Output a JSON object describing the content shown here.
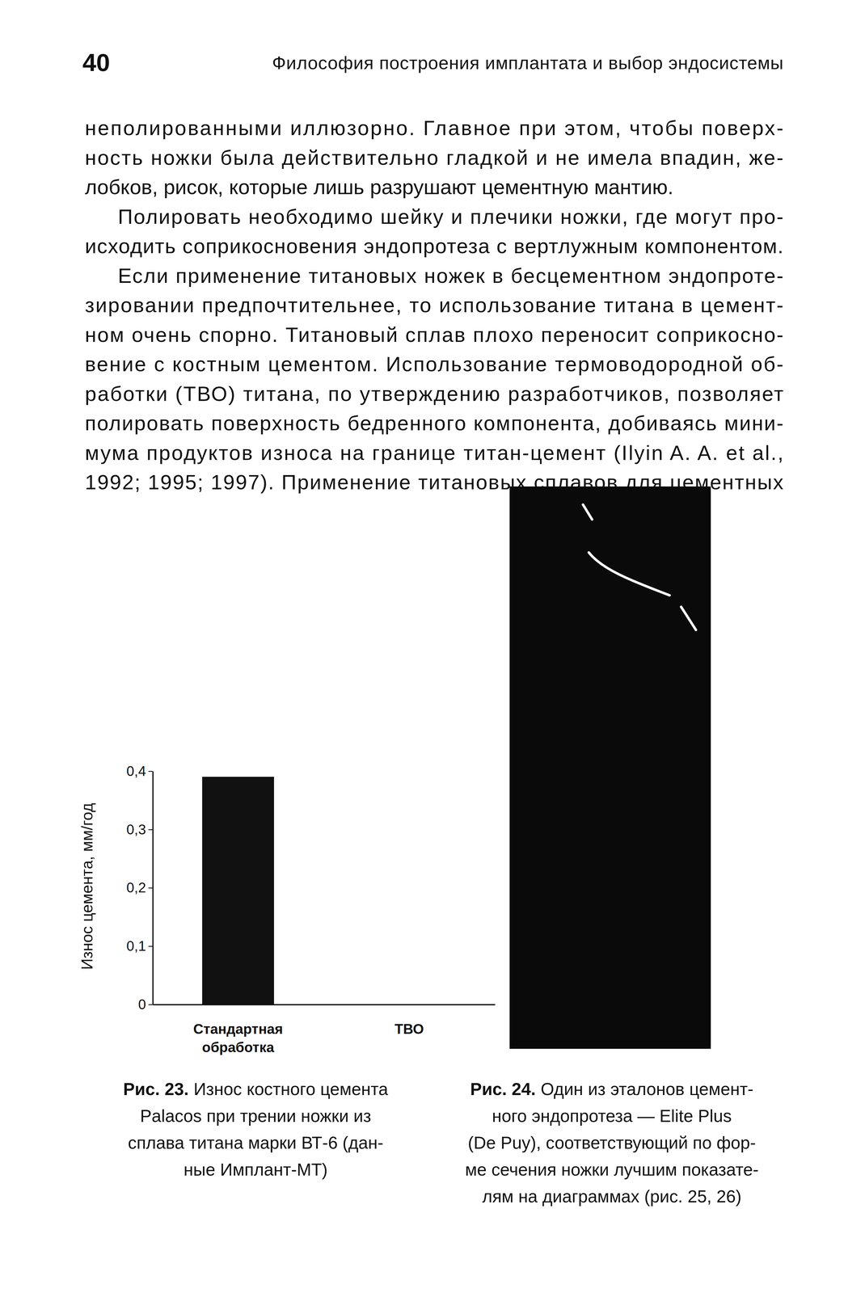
{
  "document": {
    "header": {
      "page_number": "40",
      "running_title": "Философия построения имплантата и выбор эндосистемы"
    },
    "paragraphs": [
      [
        "неполированными иллюзорно. Главное при этом, чтобы поверх-",
        "ность ножки была действительно гладкой и не имела впадин, же-",
        "лобков, рисок, которые лишь разрушают цементную мантию."
      ],
      [
        "Полировать необходимо шейку и плечики ножки, где могут про-",
        "исходить соприкосновения эндопротеза с вертлужным компонентом."
      ],
      [
        "Если применение титановых ножек в бесцементном эндопроте-",
        "зировании предпочтительнее, то использование титана в цемент-",
        "ном очень спорно. Титановый сплав плохо переносит соприкосно-",
        "вение с костным цементом. Использование термоводородной об-",
        "работки (ТВО) титана, по утверждению разработчиков, позволяет",
        "полировать поверхность бедренного компонента, добиваясь мини-",
        "мума продуктов износа на границе титан-цемент (Ilyin A. A. et al.,",
        "1992; 1995; 1997). Применение титановых сплавов для цементных"
      ]
    ],
    "figures": [
      {
        "label": "Рис. 23.",
        "caption_lines": [
          "Износ костного цемента",
          "Palacos при трении ножки из",
          "сплава титана марки ВТ-6 (дан-",
          "ные Имплант-МТ)"
        ]
      },
      {
        "label": "Рис. 24.",
        "caption_lines": [
          "Один из эталонов цемент-",
          "ного эндопротеза — Elite Plus",
          "(De Puy), соответствующий по фор-",
          "ме сечения ножки лучшим показате-",
          "лям на диаграммах (рис. 25, 26)"
        ]
      }
    ]
  },
  "chart_data": {
    "type": "bar",
    "y_label": "Износ цемента, мм/год",
    "categories": [
      "Стандартная обработка",
      "ТВО"
    ],
    "values": [
      0.39,
      0
    ],
    "color": "#111111",
    "ylim": [
      0,
      0.4
    ],
    "yticks": [
      0,
      {
        "value": 0.1,
        "label": "0,1"
      },
      {
        "value": 0.2,
        "label": "0,2"
      },
      {
        "value": 0.3,
        "label": "0,3"
      },
      {
        "value": 0.4,
        "label": "0,4"
      }
    ],
    "grid": false
  }
}
